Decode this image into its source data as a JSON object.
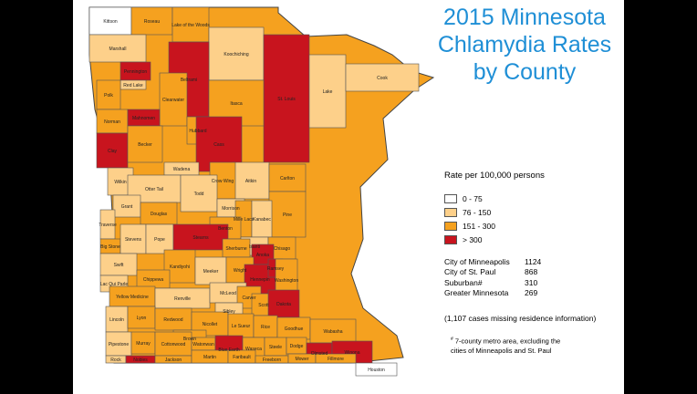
{
  "title": {
    "line1": "2015 Minnesota",
    "line2": "Chlamydia Rates",
    "line3": "by County"
  },
  "colors": {
    "rate_0_75": "#ffffff",
    "rate_76_150": "#fdd08a",
    "rate_151_300": "#f5a11f",
    "rate_over_300": "#c8141e",
    "title_blue": "#1f8fd6"
  },
  "legend": {
    "title": "Rate per 100,000 persons",
    "items": [
      {
        "label": "0 - 75",
        "color": "#ffffff"
      },
      {
        "label": "76 - 150",
        "color": "#fdd08a"
      },
      {
        "label": "151 - 300",
        "color": "#f5a11f"
      },
      {
        "label": "> 300",
        "color": "#c8141e"
      }
    ]
  },
  "stats": [
    {
      "label": "City of Minneapolis",
      "value": "1124"
    },
    {
      "label": "City of St. Paul",
      "value": "868"
    },
    {
      "label": "Suburban#",
      "value": "310"
    },
    {
      "label": "Greater Minnesota",
      "value": "269"
    }
  ],
  "missing_note": "(1,107 cases missing residence information)",
  "footnote": {
    "mark": "#",
    "line1": "7-county metro area, excluding the",
    "line2": "cities of Minneapolis and St. Paul"
  },
  "counties": [
    {
      "name": "Kittson",
      "rate": "low"
    },
    {
      "name": "Roseau",
      "rate": "mid"
    },
    {
      "name": "Lake of the Woods",
      "rate": "mid"
    },
    {
      "name": "Marshall",
      "rate": "light"
    },
    {
      "name": "Koochiching",
      "rate": "light"
    },
    {
      "name": "Pennington",
      "rate": "high"
    },
    {
      "name": "Beltrami",
      "rate": "high"
    },
    {
      "name": "Red Lake",
      "rate": "light"
    },
    {
      "name": "Polk",
      "rate": "mid"
    },
    {
      "name": "St. Louis",
      "rate": "high"
    },
    {
      "name": "Lake",
      "rate": "light"
    },
    {
      "name": "Cook",
      "rate": "light"
    },
    {
      "name": "Itasca",
      "rate": "mid"
    },
    {
      "name": "Clearwater",
      "rate": "mid"
    },
    {
      "name": "Norman",
      "rate": "mid"
    },
    {
      "name": "Mahnomen",
      "rate": "high"
    },
    {
      "name": "Hubbard",
      "rate": "mid"
    },
    {
      "name": "Cass",
      "rate": "high"
    },
    {
      "name": "Clay",
      "rate": "high"
    },
    {
      "name": "Becker",
      "rate": "mid"
    },
    {
      "name": "Aitkin",
      "rate": "light"
    },
    {
      "name": "Carlton",
      "rate": "mid"
    },
    {
      "name": "Wilkin",
      "rate": "light"
    },
    {
      "name": "Wadena",
      "rate": "light"
    },
    {
      "name": "Otter Tail",
      "rate": "light"
    },
    {
      "name": "Crow Wing",
      "rate": "mid"
    },
    {
      "name": "Pine",
      "rate": "mid"
    },
    {
      "name": "Todd",
      "rate": "light"
    },
    {
      "name": "Morrison",
      "rate": "light"
    },
    {
      "name": "Mille Lacs",
      "rate": "mid"
    },
    {
      "name": "Kanabec",
      "rate": "light"
    },
    {
      "name": "Grant",
      "rate": "light"
    },
    {
      "name": "Douglas",
      "rate": "mid"
    },
    {
      "name": "Traverse",
      "rate": "light"
    },
    {
      "name": "Benton",
      "rate": "mid"
    },
    {
      "name": "Isanti",
      "rate": "light"
    },
    {
      "name": "Chisago",
      "rate": "mid"
    },
    {
      "name": "Big Stone",
      "rate": "mid"
    },
    {
      "name": "Stevens",
      "rate": "light"
    },
    {
      "name": "Pope",
      "rate": "light"
    },
    {
      "name": "Stearns",
      "rate": "high"
    },
    {
      "name": "Sherburne",
      "rate": "mid"
    },
    {
      "name": "Anoka",
      "rate": "high"
    },
    {
      "name": "Swift",
      "rate": "light"
    },
    {
      "name": "Kandiyohi",
      "rate": "mid"
    },
    {
      "name": "Meeker",
      "rate": "light"
    },
    {
      "name": "Wright",
      "rate": "mid"
    },
    {
      "name": "Hennepin",
      "rate": "high"
    },
    {
      "name": "Ramsey",
      "rate": "high"
    },
    {
      "name": "Washington",
      "rate": "mid"
    },
    {
      "name": "Lac Qui Parle",
      "rate": "light"
    },
    {
      "name": "Chippewa",
      "rate": "mid"
    },
    {
      "name": "Yellow Medicine",
      "rate": "mid"
    },
    {
      "name": "Renville",
      "rate": "light"
    },
    {
      "name": "McLeod",
      "rate": "light"
    },
    {
      "name": "Carver",
      "rate": "mid"
    },
    {
      "name": "Scott",
      "rate": "mid"
    },
    {
      "name": "Dakota",
      "rate": "high"
    },
    {
      "name": "Sibley",
      "rate": "light"
    },
    {
      "name": "Lincoln",
      "rate": "light"
    },
    {
      "name": "Lyon",
      "rate": "mid"
    },
    {
      "name": "Redwood",
      "rate": "mid"
    },
    {
      "name": "Nicollet",
      "rate": "mid"
    },
    {
      "name": "Le Sueur",
      "rate": "mid"
    },
    {
      "name": "Rice",
      "rate": "mid"
    },
    {
      "name": "Goodhue",
      "rate": "mid"
    },
    {
      "name": "Wabasha",
      "rate": "mid"
    },
    {
      "name": "Brown",
      "rate": "mid"
    },
    {
      "name": "Pipestone",
      "rate": "light"
    },
    {
      "name": "Murray",
      "rate": "mid"
    },
    {
      "name": "Cottonwood",
      "rate": "mid"
    },
    {
      "name": "Watonwan",
      "rate": "mid"
    },
    {
      "name": "Blue Earth",
      "rate": "high"
    },
    {
      "name": "Waseca",
      "rate": "mid"
    },
    {
      "name": "Steele",
      "rate": "mid"
    },
    {
      "name": "Dodge",
      "rate": "mid"
    },
    {
      "name": "Olmsted",
      "rate": "high"
    },
    {
      "name": "Winona",
      "rate": "high"
    },
    {
      "name": "Rock",
      "rate": "light"
    },
    {
      "name": "Nobles",
      "rate": "high"
    },
    {
      "name": "Jackson",
      "rate": "mid"
    },
    {
      "name": "Martin",
      "rate": "mid"
    },
    {
      "name": "Faribault",
      "rate": "mid"
    },
    {
      "name": "Freeborn",
      "rate": "mid"
    },
    {
      "name": "Mower",
      "rate": "mid"
    },
    {
      "name": "Fillmore",
      "rate": "mid"
    },
    {
      "name": "Houston",
      "rate": "low"
    }
  ]
}
